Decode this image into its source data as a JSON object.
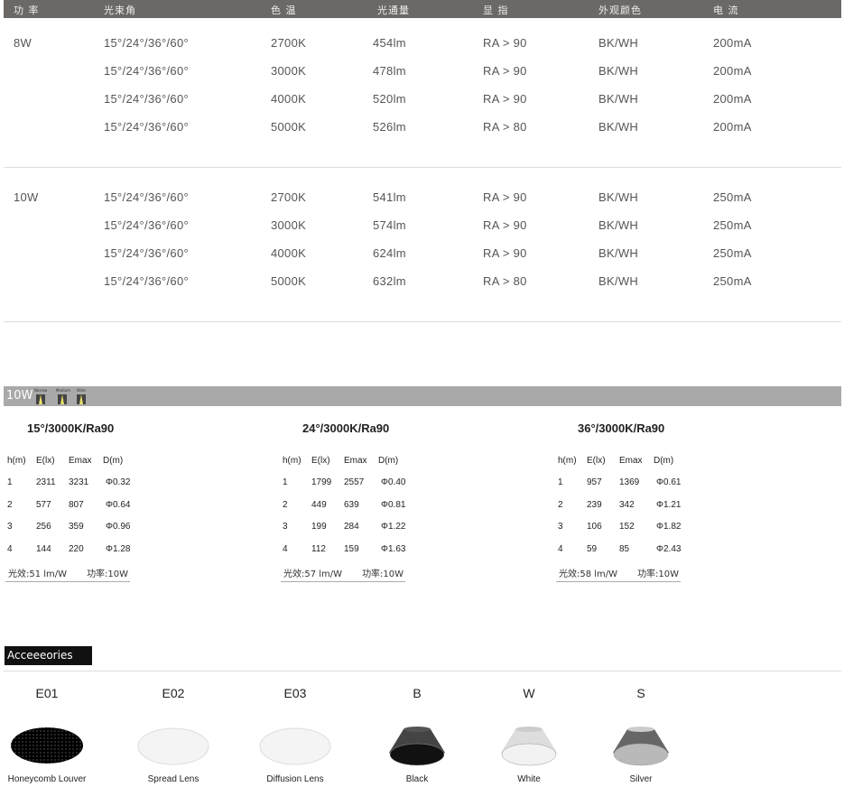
{
  "spec_table": {
    "headers": [
      "功 率",
      "光束角",
      "色 温",
      "光通量",
      "显 指",
      "外观颜色",
      "电 流"
    ],
    "groups": [
      {
        "power": "8W",
        "rows": [
          [
            "15°/24°/36°/60°",
            "2700K",
            "454lm",
            "RA > 90",
            "BK/WH",
            "200mA"
          ],
          [
            "15°/24°/36°/60°",
            "3000K",
            "478lm",
            "RA > 90",
            "BK/WH",
            "200mA"
          ],
          [
            "15°/24°/36°/60°",
            "4000K",
            "520lm",
            "RA > 90",
            "BK/WH",
            "200mA"
          ],
          [
            "15°/24°/36°/60°",
            "5000K",
            "526lm",
            "RA > 80",
            "BK/WH",
            "200mA"
          ]
        ]
      },
      {
        "power": "10W",
        "rows": [
          [
            "15°/24°/36°/60°",
            "2700K",
            "541lm",
            "RA > 90",
            "BK/WH",
            "250mA"
          ],
          [
            "15°/24°/36°/60°",
            "3000K",
            "574lm",
            "RA > 90",
            "BK/WH",
            "250mA"
          ],
          [
            "15°/24°/36°/60°",
            "4000K",
            "624lm",
            "RA > 90",
            "BK/WH",
            "250mA"
          ],
          [
            "15°/24°/36°/60°",
            "5000K",
            "632lm",
            "RA > 80",
            "BK/WH",
            "250mA"
          ]
        ]
      }
    ]
  },
  "photometric": {
    "bar_label": "10W",
    "beam_icons": [
      "Narrow",
      "Medium",
      "Wide"
    ],
    "columns": [
      "h(m)",
      "E(lx)",
      "Emax",
      "D(m)"
    ],
    "blocks": [
      {
        "title": "15°/3000K/Ra90",
        "rows": [
          [
            "1",
            "2311",
            "3231",
            "Φ0.32"
          ],
          [
            "2",
            "577",
            "807",
            "Φ0.64"
          ],
          [
            "3",
            "256",
            "359",
            "Φ0.96"
          ],
          [
            "4",
            "144",
            "220",
            "Φ1.28"
          ]
        ],
        "efficacy": "光效:51 lm/W",
        "power": "功率:10W"
      },
      {
        "title": "24°/3000K/Ra90",
        "rows": [
          [
            "1",
            "1799",
            "2557",
            "Φ0.40"
          ],
          [
            "2",
            "449",
            "639",
            "Φ0.81"
          ],
          [
            "3",
            "199",
            "284",
            "Φ1.22"
          ],
          [
            "4",
            "112",
            "159",
            "Φ1.63"
          ]
        ],
        "efficacy": "光效:57 lm/W",
        "power": "功率:10W"
      },
      {
        "title": "36°/3000K/Ra90",
        "rows": [
          [
            "1",
            "957",
            "1369",
            "Φ0.61"
          ],
          [
            "2",
            "239",
            "342",
            "Φ1.21"
          ],
          [
            "3",
            "106",
            "152",
            "Φ1.82"
          ],
          [
            "4",
            "59",
            "85",
            "Φ2.43"
          ]
        ],
        "efficacy": "光效:58 lm/W",
        "power": "功率:10W"
      }
    ]
  },
  "accessories": {
    "title": "Acceeeories",
    "items": [
      {
        "code": "E01",
        "label": "Honeycomb Louver",
        "kind": "honeycomb"
      },
      {
        "code": "E02",
        "label": "Spread Lens",
        "kind": "lens"
      },
      {
        "code": "E03",
        "label": "Diffusion Lens",
        "kind": "lens"
      },
      {
        "code": "B",
        "label": "Black",
        "kind": "reflector",
        "color": "#111111"
      },
      {
        "code": "W",
        "label": "White",
        "kind": "reflector",
        "color": "#f2f2f2"
      },
      {
        "code": "S",
        "label": "Silver",
        "kind": "reflector",
        "color": "#b9b9b9"
      }
    ]
  }
}
